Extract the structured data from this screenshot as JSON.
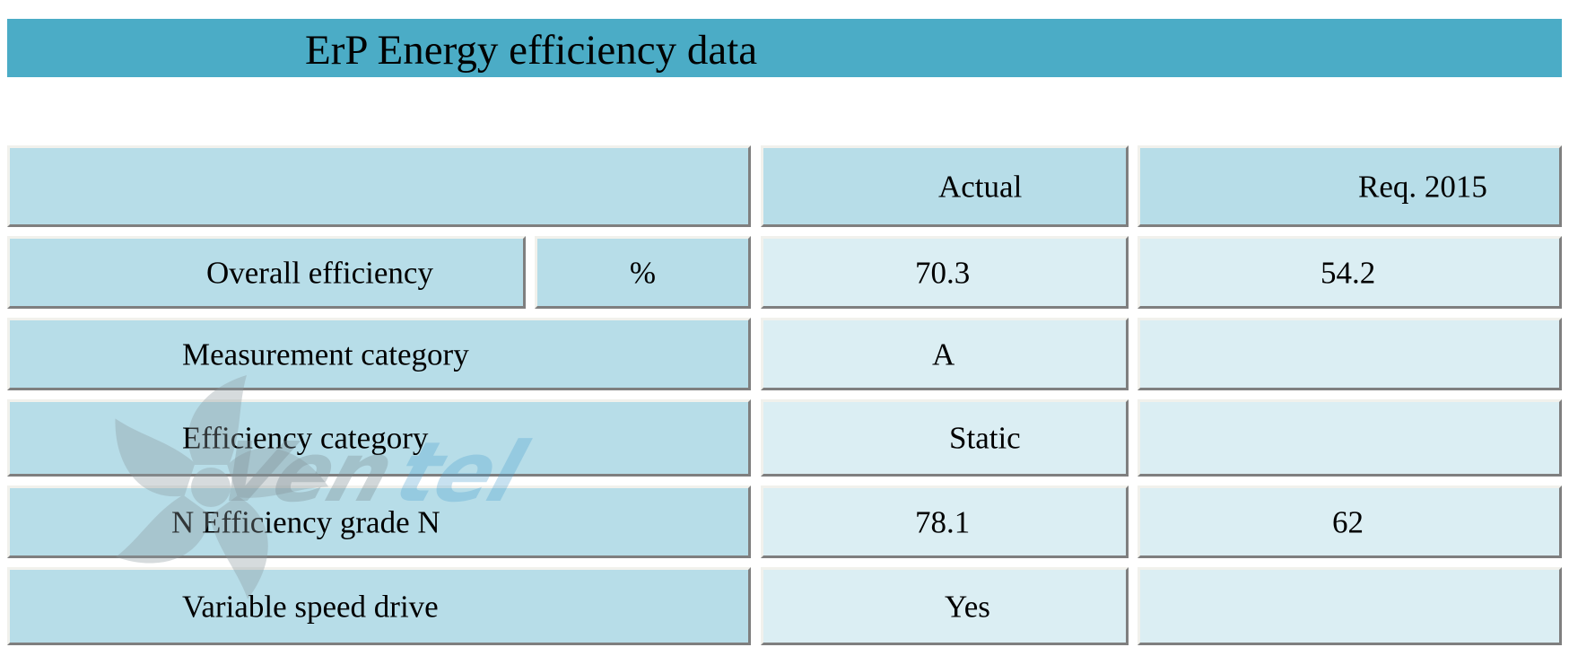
{
  "title": "ErP Energy efficiency data",
  "header": {
    "actual_label": "Actual",
    "req_label": "Req. 2015"
  },
  "rows": [
    {
      "label": "Overall efficiency",
      "unit": "%",
      "actual": "70.3",
      "req": "54.2"
    },
    {
      "label": "Measurement category",
      "actual": "A",
      "req": ""
    },
    {
      "label": "Efficiency category",
      "actual": "Static",
      "req": ""
    },
    {
      "label": "N Efficiency grade N",
      "actual": "78.1",
      "req": "62"
    },
    {
      "label": "Variable speed drive",
      "actual": "Yes",
      "req": ""
    }
  ],
  "watermark": {
    "text": "Ventel",
    "icon": "fan-icon"
  }
}
